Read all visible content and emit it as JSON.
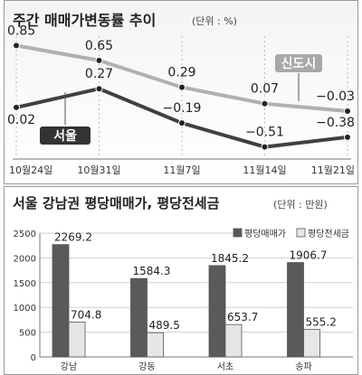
{
  "chart_data": [
    {
      "type": "line",
      "title": "주간 매매가변동률 추이",
      "unit": "(단위 : %)",
      "categories": [
        "10월24일",
        "10월31일",
        "11월7일",
        "11월14일",
        "11월21일"
      ],
      "series": [
        {
          "name": "신도시",
          "values": [
            0.85,
            0.65,
            0.29,
            0.07,
            -0.03
          ],
          "labels": [
            "0.85",
            "0.65",
            "0.29",
            "0.07",
            "−0.03"
          ],
          "color": "#b0b0b0"
        },
        {
          "name": "서울",
          "values": [
            0.02,
            0.27,
            -0.19,
            -0.51,
            -0.38
          ],
          "labels": [
            "0.02",
            "0.27",
            "−0.19",
            "−0.51",
            "−0.38"
          ],
          "color": "#404040"
        }
      ],
      "ylim": [
        -0.6,
        1.0
      ],
      "grid": false,
      "legend": "inline"
    },
    {
      "type": "bar",
      "title": "서울 강남권 평당매매가, 평당전세금",
      "unit": "(단위 : 만원)",
      "categories": [
        "강남",
        "강동",
        "서초",
        "송파"
      ],
      "series": [
        {
          "name": "평당매매가",
          "values": [
            2269.2,
            1584.3,
            1845.2,
            1906.7
          ],
          "labels": [
            "2269.2",
            "1584.3",
            "1845.2",
            "1906.7"
          ],
          "color": "#5a5a5a"
        },
        {
          "name": "평당전세금",
          "values": [
            704.8,
            489.5,
            653.7,
            555.2
          ],
          "labels": [
            "704.8",
            "489.5",
            "653.7",
            "555.2"
          ],
          "color": "#e6e6e6"
        }
      ],
      "ylim": [
        0,
        2500
      ],
      "yticks": [
        "0",
        "500",
        "1000",
        "1500",
        "2000",
        "2500"
      ],
      "grid": true,
      "legend": "top-right"
    }
  ]
}
